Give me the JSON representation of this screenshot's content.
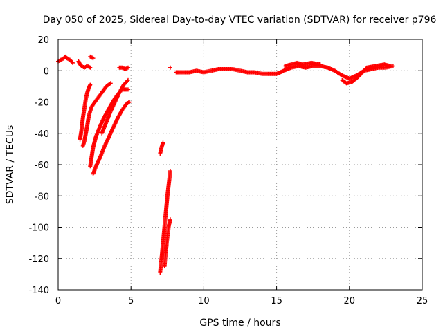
{
  "chart_data": {
    "type": "scatter",
    "title": "Day 050 of 2025, Sidereal Day-to-day VTEC variation (SDTVAR) for receiver p796",
    "xlabel": "GPS time / hours",
    "ylabel": "SDTVAR / TECUs",
    "xlim": [
      0,
      25
    ],
    "ylim": [
      -140,
      20
    ],
    "xticks": [
      0,
      5,
      10,
      15,
      20,
      25
    ],
    "yticks": [
      20,
      0,
      -20,
      -40,
      -60,
      -80,
      -100,
      -120,
      -140
    ],
    "xtick_labels": [
      "0",
      "5",
      "10",
      "15",
      "20",
      "25"
    ],
    "ytick_labels": [
      "20",
      "0",
      "-20",
      "-40",
      "-60",
      "-80",
      "-100",
      "-120",
      "-140"
    ],
    "grid": true,
    "marker": "plus",
    "color": "#ff0000",
    "series": [
      {
        "name": "SDTVAR",
        "segments": [
          [
            [
              0.0,
              6
            ],
            [
              0.2,
              7
            ],
            [
              0.4,
              8
            ],
            [
              0.5,
              9
            ],
            [
              0.6,
              8
            ],
            [
              0.8,
              7
            ],
            [
              0.9,
              6
            ],
            [
              1.0,
              5
            ]
          ],
          [
            [
              1.4,
              6
            ],
            [
              1.5,
              4
            ],
            [
              1.6,
              3
            ],
            [
              1.8,
              2
            ],
            [
              2.0,
              3
            ],
            [
              2.2,
              2
            ]
          ],
          [
            [
              2.2,
              9
            ],
            [
              2.4,
              8
            ]
          ],
          [
            [
              4.2,
              2
            ],
            [
              4.4,
              2
            ],
            [
              4.6,
              1
            ],
            [
              4.8,
              2
            ]
          ],
          [
            [
              1.5,
              -44
            ],
            [
              1.6,
              -38
            ],
            [
              1.7,
              -30
            ],
            [
              1.8,
              -24
            ],
            [
              1.9,
              -18
            ],
            [
              2.0,
              -14
            ],
            [
              2.1,
              -11
            ],
            [
              2.2,
              -9
            ]
          ],
          [
            [
              1.7,
              -48
            ],
            [
              1.8,
              -45
            ],
            [
              1.9,
              -40
            ],
            [
              2.0,
              -35
            ],
            [
              2.1,
              -29
            ],
            [
              2.3,
              -23
            ],
            [
              2.6,
              -19
            ],
            [
              3.0,
              -14
            ],
            [
              3.3,
              -10
            ],
            [
              3.6,
              -8
            ]
          ],
          [
            [
              2.2,
              -61
            ],
            [
              2.3,
              -55
            ],
            [
              2.4,
              -49
            ],
            [
              2.6,
              -42
            ],
            [
              2.9,
              -35
            ],
            [
              3.2,
              -29
            ],
            [
              3.5,
              -24
            ],
            [
              3.8,
              -19
            ],
            [
              4.1,
              -15
            ],
            [
              4.4,
              -12
            ],
            [
              4.8,
              -12
            ]
          ],
          [
            [
              2.4,
              -66
            ],
            [
              2.6,
              -61
            ],
            [
              2.9,
              -55
            ],
            [
              3.2,
              -48
            ],
            [
              3.5,
              -42
            ],
            [
              3.8,
              -36
            ],
            [
              4.1,
              -30
            ],
            [
              4.4,
              -25
            ],
            [
              4.7,
              -21
            ],
            [
              4.9,
              -20
            ]
          ],
          [
            [
              3.0,
              -40
            ],
            [
              3.3,
              -33
            ],
            [
              3.6,
              -26
            ],
            [
              3.9,
              -20
            ],
            [
              4.2,
              -14
            ],
            [
              4.5,
              -9
            ],
            [
              4.8,
              -6
            ]
          ],
          [
            [
              7.0,
              -53
            ],
            [
              7.1,
              -49
            ],
            [
              7.2,
              -46
            ]
          ],
          [
            [
              7.0,
              -129
            ],
            [
              7.1,
              -120
            ],
            [
              7.2,
              -110
            ],
            [
              7.3,
              -100
            ],
            [
              7.4,
              -90
            ],
            [
              7.5,
              -80
            ],
            [
              7.6,
              -72
            ],
            [
              7.7,
              -64
            ]
          ],
          [
            [
              7.3,
              -125
            ],
            [
              7.4,
              -115
            ],
            [
              7.5,
              -106
            ],
            [
              7.6,
              -99
            ],
            [
              7.7,
              -95
            ]
          ],
          [
            [
              7.7,
              2
            ]
          ],
          [
            [
              8.1,
              -1
            ],
            [
              8.5,
              -1
            ],
            [
              9.0,
              -1
            ],
            [
              9.5,
              0
            ],
            [
              10.0,
              -1
            ],
            [
              10.5,
              0
            ],
            [
              11.0,
              1
            ],
            [
              11.5,
              1
            ],
            [
              12.0,
              1
            ],
            [
              12.5,
              0
            ],
            [
              13.0,
              -1
            ],
            [
              13.5,
              -1
            ],
            [
              14.0,
              -2
            ],
            [
              14.5,
              -2
            ],
            [
              15.0,
              -2
            ],
            [
              15.5,
              0
            ],
            [
              16.0,
              2
            ],
            [
              16.5,
              3
            ],
            [
              17.0,
              2
            ],
            [
              17.5,
              3
            ],
            [
              18.0,
              3
            ],
            [
              18.5,
              2
            ],
            [
              19.0,
              0
            ],
            [
              19.5,
              -3
            ],
            [
              20.0,
              -5
            ],
            [
              20.5,
              -3
            ],
            [
              21.0,
              0
            ],
            [
              21.5,
              1
            ],
            [
              22.0,
              2
            ],
            [
              22.5,
              2
            ],
            [
              23.0,
              3
            ]
          ],
          [
            [
              15.6,
              3
            ],
            [
              16.0,
              4
            ],
            [
              16.4,
              5
            ],
            [
              16.8,
              4
            ],
            [
              17.4,
              5
            ],
            [
              18.0,
              4
            ]
          ],
          [
            [
              19.5,
              -6
            ],
            [
              19.8,
              -8
            ],
            [
              20.2,
              -7
            ],
            [
              20.6,
              -4
            ],
            [
              21.2,
              2
            ],
            [
              21.8,
              3
            ],
            [
              22.4,
              4
            ],
            [
              22.8,
              3
            ]
          ]
        ]
      }
    ]
  }
}
